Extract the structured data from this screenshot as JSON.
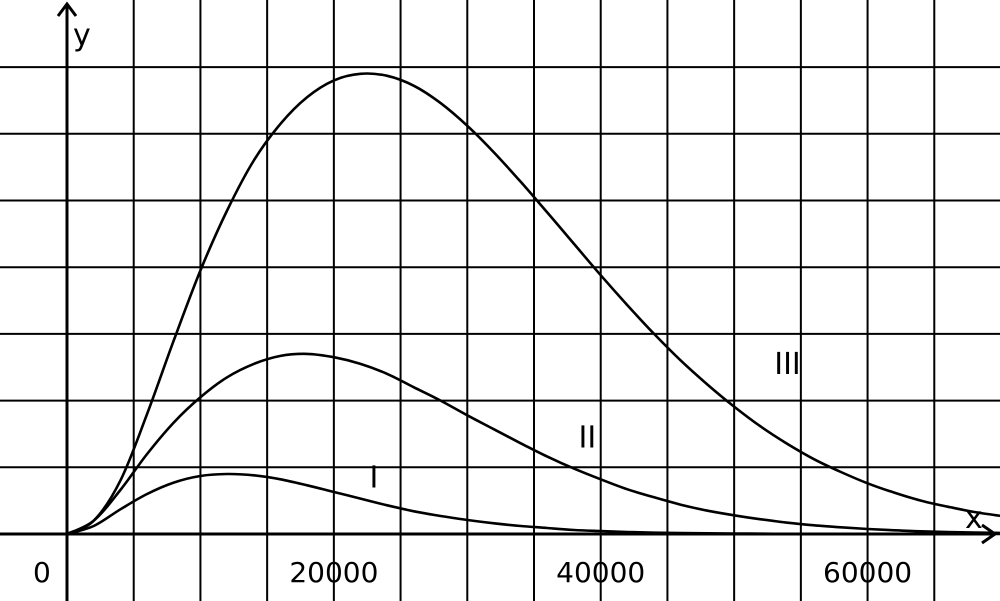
{
  "chart_data": {
    "type": "line",
    "xlabel": "x",
    "ylabel": "y",
    "origin_label": "0",
    "xlim": [
      0,
      70000
    ],
    "ylim": [
      0,
      7.2
    ],
    "x_ticks": [
      20000,
      40000,
      60000
    ],
    "grid": true,
    "x": [
      0,
      2000,
      4000,
      6000,
      8000,
      10000,
      12000,
      14000,
      16000,
      18000,
      20000,
      22000,
      24000,
      26000,
      28000,
      30000,
      32000,
      34000,
      36000,
      38000,
      40000,
      42000,
      44000,
      46000,
      48000,
      50000,
      52000,
      54000,
      56000,
      58000,
      60000,
      62000,
      64000,
      66000,
      68000,
      70000
    ],
    "series": [
      {
        "name": "I",
        "values": [
          0,
          0.12,
          0.37,
          0.6,
          0.77,
          0.87,
          0.9,
          0.88,
          0.82,
          0.73,
          0.63,
          0.53,
          0.43,
          0.34,
          0.27,
          0.21,
          0.16,
          0.12,
          0.09,
          0.06,
          0.045,
          0.03,
          0.02,
          0.015,
          0.01,
          0.007,
          0.005,
          0.003,
          0.002,
          0.0015,
          0.001,
          0.0007,
          0.0005,
          0.0003,
          0.0002,
          0.0001
        ]
      },
      {
        "name": "II",
        "values": [
          0,
          0.2,
          0.66,
          1.2,
          1.67,
          2.05,
          2.35,
          2.55,
          2.67,
          2.7,
          2.65,
          2.55,
          2.4,
          2.2,
          2.0,
          1.78,
          1.57,
          1.36,
          1.16,
          0.98,
          0.82,
          0.67,
          0.55,
          0.44,
          0.35,
          0.28,
          0.22,
          0.17,
          0.13,
          0.1,
          0.075,
          0.055,
          0.04,
          0.03,
          0.022,
          0.016
        ]
      },
      {
        "name": "III",
        "values": [
          0,
          0.2,
          0.8,
          1.8,
          2.9,
          3.95,
          4.85,
          5.6,
          6.15,
          6.55,
          6.8,
          6.9,
          6.87,
          6.72,
          6.46,
          6.12,
          5.72,
          5.28,
          4.82,
          4.35,
          3.88,
          3.43,
          3.0,
          2.6,
          2.24,
          1.91,
          1.61,
          1.35,
          1.12,
          0.93,
          0.76,
          0.62,
          0.5,
          0.41,
          0.33,
          0.27
        ]
      }
    ],
    "curve_labels": [
      {
        "text": "I",
        "x": 23000,
        "y": 0.7
      },
      {
        "text": "II",
        "x": 39000,
        "y": 1.3
      },
      {
        "text": "III",
        "x": 54000,
        "y": 2.4
      }
    ]
  }
}
